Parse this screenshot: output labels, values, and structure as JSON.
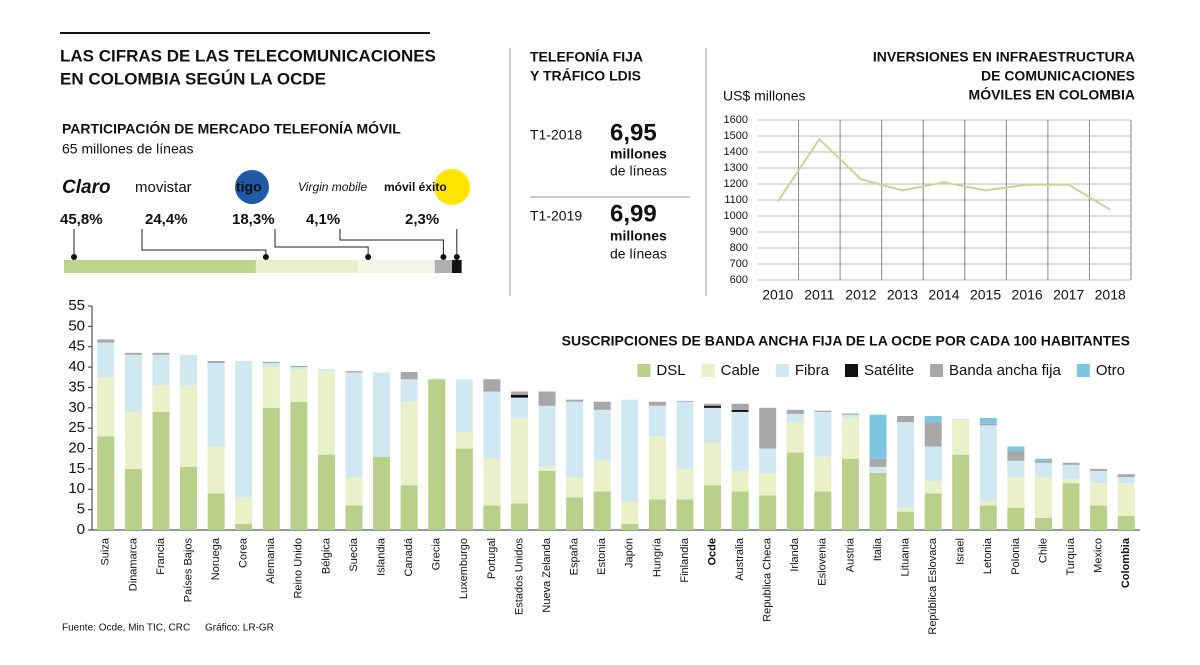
{
  "header": {
    "title": [
      "LAS CIFRAS DE LAS TELECOMUNICACIONES",
      "EN COLOMBIA SEGÚN LA OCDE"
    ]
  },
  "fixed_phone": {
    "title": [
      "TELEFONÍA FIJA",
      "Y TRÁFICO LDIS"
    ],
    "rows": [
      {
        "period": "T1-2018",
        "value": "6,95",
        "unit": [
          "millones",
          "de líneas"
        ]
      },
      {
        "period": "T1-2019",
        "value": "6,99",
        "unit": [
          "millones",
          "de líneas"
        ]
      }
    ]
  },
  "source": {
    "text": "Fuente: Ocde, Min TIC, CRC",
    "credit": "Gráfico: LR-GR"
  },
  "chart_data": [
    {
      "type": "share_bar",
      "title": "PARTICIPACIÓN DE MERCADO TELEFONÍA MÓVIL",
      "subtitle": "65 millones de líneas",
      "categories": [
        "Claro",
        "movistar",
        "tigo",
        "Virgin mobile",
        "móvil éxito"
      ],
      "values": [
        45.8,
        24.4,
        18.3,
        4.1,
        2.3
      ],
      "value_labels": [
        "45,8%",
        "24,4%",
        "18,3%",
        "4,1%",
        "2,3%"
      ],
      "colors": [
        "#bfd48f",
        "#e9f0cc",
        "#f2f6e6",
        "#b0b0b3",
        "#111111"
      ],
      "xlim": [
        0,
        100
      ]
    },
    {
      "type": "line",
      "title": [
        "INVERSIONES EN INFRAESTRUCTURA",
        "DE COMUNICACIONES",
        "MÓVILES EN COLOMBIA"
      ],
      "y_label": "US$ millones",
      "x": [
        2010,
        2011,
        2012,
        2013,
        2014,
        2015,
        2016,
        2017,
        2018
      ],
      "values": [
        1090,
        1480,
        1230,
        1160,
        1210,
        1160,
        1195,
        1195,
        1040
      ],
      "color": "#c5d89a",
      "xlim": [
        2009.5,
        2018.5
      ],
      "xticks": [
        2010,
        2011,
        2012,
        2013,
        2014,
        2015,
        2016,
        2017,
        2018
      ],
      "ylim": [
        600,
        1600
      ],
      "yticks": [
        600,
        700,
        800,
        900,
        1000,
        1100,
        1200,
        1300,
        1400,
        1500,
        1600
      ],
      "grid": true
    },
    {
      "type": "stacked_bar",
      "title": "SUSCRIPCIONES DE BANDA ANCHA FIJA DE LA OCDE POR CADA 100 HABITANTES",
      "legend": "top-right",
      "categories": [
        "Suiza",
        "Dinamarca",
        "Francia",
        "Países Bajos",
        "Noruega",
        "Corea",
        "Alemania",
        "Reino Unido",
        "Bélgica",
        "Suecia",
        "Islandia",
        "Canadá",
        "Grecia",
        "Luxemburgo",
        "Portugal",
        "Estados Unidos",
        "Nueva Zelanda",
        "España",
        "Estonia",
        "Japón",
        "Hungría",
        "Finlandia",
        "Ocde",
        "Australia",
        "Republica Checa",
        "Irlanda",
        "Eslovenia",
        "Austria",
        "Italia",
        "Lituania",
        "República Eslovaca",
        "Israel",
        "Letonia",
        "Polonia",
        "Chile",
        "Turquía",
        "Mexico",
        "Colombia"
      ],
      "bold_categories": [
        22,
        37
      ],
      "series": [
        {
          "name": "DSL",
          "color": "#b9d08a",
          "values": [
            23,
            15,
            29,
            15.5,
            9,
            1.5,
            30,
            31.5,
            18.5,
            6,
            18,
            11,
            37,
            20,
            6,
            6.5,
            14.5,
            8,
            9.5,
            1.5,
            7.5,
            7.5,
            11,
            9.5,
            8.5,
            19,
            9.5,
            17.5,
            14,
            4.5,
            9,
            18.5,
            6,
            5.5,
            3,
            11.5,
            6,
            3.5
          ]
        },
        {
          "name": "Cable",
          "color": "#eaf0c8",
          "values": [
            14.5,
            14,
            6.5,
            20,
            11.5,
            6.5,
            10,
            8,
            20.5,
            7,
            0,
            20.5,
            0,
            4,
            11.5,
            21,
            1,
            5,
            7.5,
            5.5,
            15.5,
            7.5,
            10.5,
            5,
            5.5,
            7.5,
            8.5,
            10,
            0,
            1,
            3,
            8.5,
            1,
            7.5,
            10,
            1,
            5.5,
            8
          ]
        },
        {
          "name": "Fibra",
          "color": "#cfe8f2",
          "values": [
            8.5,
            14,
            7.5,
            7.5,
            20.5,
            33.5,
            1,
            0.5,
            0.5,
            25.7,
            20.7,
            5.5,
            0.2,
            13,
            16.5,
            5,
            15,
            18.5,
            12.5,
            25,
            7.5,
            16.5,
            8.5,
            14.5,
            6,
            2,
            11,
            0.8,
            1.5,
            21,
            8.5,
            0.3,
            18.7,
            4,
            3.5,
            3.5,
            3,
            1.5
          ]
        },
        {
          "name": "Satélite",
          "color": "#111111",
          "values": [
            0,
            0,
            0,
            0,
            0,
            0,
            0,
            0,
            0,
            0,
            0,
            0,
            0,
            0,
            0,
            0.7,
            0,
            0,
            0,
            0,
            0,
            0,
            0.5,
            0.5,
            0,
            0,
            0,
            0,
            0,
            0,
            0,
            0,
            0,
            0,
            0,
            0,
            0,
            0
          ]
        },
        {
          "name": "Banda ancha fija",
          "color": "#a8a8ab",
          "values": [
            0.8,
            0.5,
            0.5,
            0,
            0.5,
            0,
            0.3,
            0.3,
            0,
            0.3,
            0,
            1.8,
            0,
            0,
            3,
            0.8,
            3.5,
            0.5,
            2,
            0,
            1,
            0.2,
            0.5,
            1.5,
            10,
            1,
            0.3,
            0.3,
            2,
            1.5,
            6,
            0,
            0.5,
            2.5,
            0.5,
            0.5,
            0.5,
            0.7
          ]
        },
        {
          "name": "Otro",
          "color": "#7cc6e2",
          "values": [
            0,
            0,
            0,
            0,
            0,
            0,
            0,
            0,
            0,
            0,
            0,
            0,
            0,
            0,
            0,
            0,
            0,
            0,
            0,
            0,
            0,
            0,
            0,
            0,
            0,
            0,
            0,
            0,
            10.8,
            0,
            1.5,
            0,
            1.3,
            1,
            0.5,
            0,
            0,
            0
          ]
        }
      ],
      "ylim": [
        0,
        55
      ],
      "yticks": [
        0,
        5,
        10,
        15,
        20,
        25,
        30,
        35,
        40,
        45,
        50,
        55
      ]
    }
  ]
}
